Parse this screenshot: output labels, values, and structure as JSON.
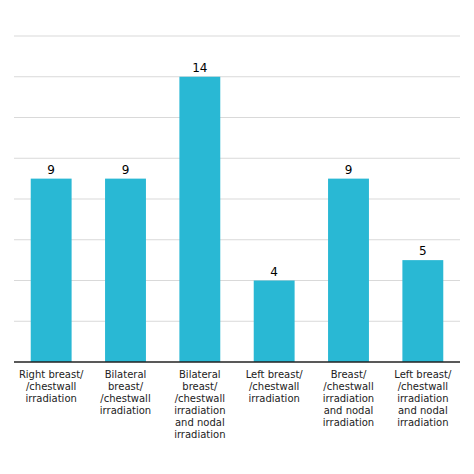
{
  "chart_data": {
    "type": "bar",
    "categories": [
      "Right breast/\n/chestwall\nirradiation",
      "Bilateral\nbreast/\n/chestwall\nirradiation",
      "Bilateral\nbreast/\n/chestwall\nirradiation\nand nodal\nirradiation",
      "Left breast/\n/chestwall\nirradiation",
      "Breast/\n/chestwall\nirradiation\nand nodal\nirradiation",
      "Left breast/\n/chestwall\nirradiation\nand nodal\nirradiation"
    ],
    "values": [
      9,
      9,
      14,
      4,
      9,
      5
    ],
    "color": "#29B8D4",
    "ylim": [
      0,
      16
    ],
    "yticks": [
      2,
      4,
      6,
      8,
      10,
      12,
      14,
      16
    ],
    "grid": true,
    "data_labels": true,
    "tick_labels": "x"
  }
}
